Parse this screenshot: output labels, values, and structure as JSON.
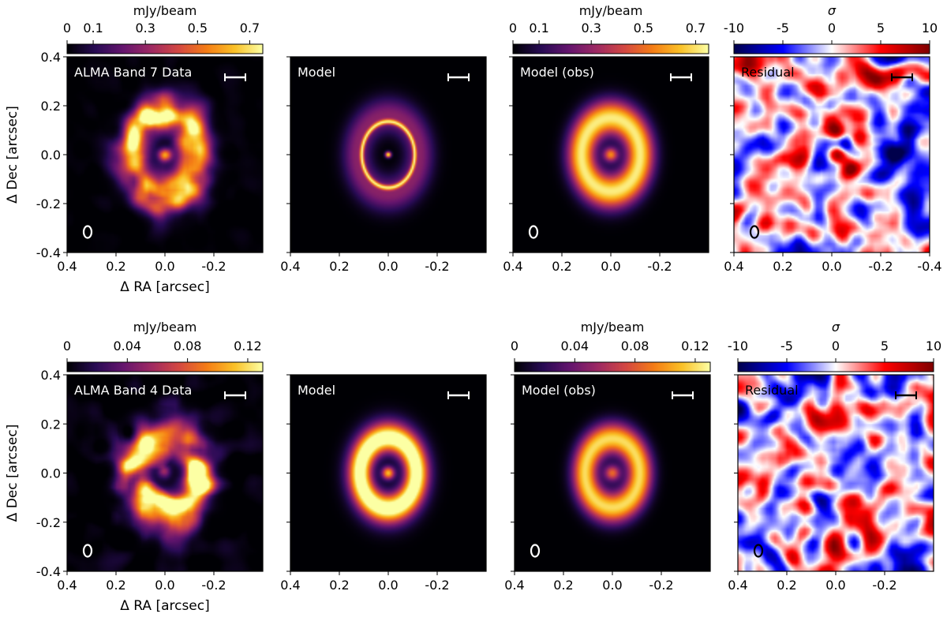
{
  "chart_data": [
    {
      "type": "heatmap",
      "row": "Band 7",
      "colormap_name": "inferno",
      "colorbar_label": "mJy/beam",
      "colorbar_ticks": [
        "0",
        "0.1",
        "0.3",
        "0.5",
        "0.7"
      ],
      "colorbar_tick_values": [
        0,
        0.1,
        0.3,
        0.5,
        0.7
      ],
      "colorbar_range": [
        0,
        0.75
      ],
      "residual_colormap_name": "seismic",
      "residual_colorbar_label": "σ",
      "residual_colorbar_ticks": [
        "-10",
        "-5",
        "0",
        "5",
        "10"
      ],
      "residual_colorbar_tick_values": [
        -10,
        -5,
        0,
        5,
        10
      ],
      "residual_range": [
        -10,
        10
      ],
      "xlabel": "Δ RA [arcsec]",
      "ylabel": "Δ Dec [arcsec]",
      "xlim": [
        0.4,
        -0.4
      ],
      "ylim": [
        -0.4,
        0.4
      ],
      "x_ticks": [
        "0.4",
        "0.2",
        "0.0",
        "-0.2"
      ],
      "x_tick_values": [
        0.4,
        0.2,
        0.0,
        -0.2
      ],
      "x_ticks_residual": [
        "0.4",
        "0.2",
        "0.0",
        "-0.2",
        "-0.4"
      ],
      "x_tick_values_residual": [
        0.4,
        0.2,
        0.0,
        -0.2,
        -0.4
      ],
      "y_ticks": [
        "0.4",
        "0.2",
        "0.0",
        "-0.2",
        "-0.4"
      ],
      "y_tick_values": [
        0.4,
        0.2,
        0.0,
        -0.2,
        -0.4
      ],
      "panels": [
        {
          "kind": "data",
          "title": "ALMA Band 7 Data",
          "beam": true,
          "ring_radius": 0.165,
          "ring_width": 0.05,
          "ring_peak": 0.7,
          "center_peak": 0.55,
          "center_width": 0.018,
          "halo": 0.06,
          "noise": 0.06
        },
        {
          "kind": "model",
          "title": "Model",
          "beam": false,
          "ring_radius": 0.135,
          "ring_width": 0.007,
          "ring_peak": 0.5,
          "outer_halo_radius": 0.16,
          "outer_halo_width": 0.05,
          "outer_halo_peak": 0.28,
          "center_peak": 0.75,
          "center_width": 0.008
        },
        {
          "kind": "model_obs",
          "title": "Model (obs)",
          "beam": true,
          "ring_radius": 0.15,
          "ring_width": 0.05,
          "ring_peak": 0.72,
          "center_peak": 0.55,
          "center_width": 0.02
        },
        {
          "kind": "residual",
          "title": "Residual",
          "beam": true,
          "noise_sigma": 3.5,
          "features": [
            {
              "x": 0.05,
              "y": -0.05,
              "amp": -9,
              "w": 0.03
            },
            {
              "x": -0.02,
              "y": 0.0,
              "amp": 8,
              "w": 0.025
            },
            {
              "x": -0.02,
              "y": 0.09,
              "amp": 8,
              "w": 0.025
            },
            {
              "x": -0.08,
              "y": -0.06,
              "amp": 9,
              "w": 0.025
            },
            {
              "x": -0.06,
              "y": 0.04,
              "amp": -7,
              "w": 0.025
            }
          ]
        }
      ]
    },
    {
      "type": "heatmap",
      "row": "Band 4",
      "colormap_name": "inferno",
      "colorbar_label": "mJy/beam",
      "colorbar_ticks": [
        "0",
        "0.04",
        "0.08",
        "0.12"
      ],
      "colorbar_tick_values": [
        0,
        0.04,
        0.08,
        0.12
      ],
      "colorbar_range": [
        0,
        0.13
      ],
      "residual_colormap_name": "seismic",
      "residual_colorbar_label": "σ",
      "residual_colorbar_ticks": [
        "-10",
        "-5",
        "0",
        "5",
        "10"
      ],
      "residual_colorbar_tick_values": [
        -10,
        -5,
        0,
        5,
        10
      ],
      "residual_range": [
        -10,
        10
      ],
      "xlabel": "Δ RA [arcsec]",
      "ylabel": "Δ Dec [arcsec]",
      "xlim": [
        0.4,
        -0.4
      ],
      "ylim": [
        -0.4,
        0.4
      ],
      "x_ticks": [
        "0.4",
        "0.2",
        "0.0",
        "-0.2"
      ],
      "x_tick_values": [
        0.4,
        0.2,
        0.0,
        -0.2
      ],
      "x_ticks_residual": [
        "0.4",
        "0.2",
        "0.0",
        "-0.2"
      ],
      "x_tick_values_residual": [
        0.4,
        0.2,
        0.0,
        -0.2
      ],
      "y_ticks": [
        "0.4",
        "0.2",
        "0.0",
        "-0.2",
        "-0.4"
      ],
      "y_tick_values": [
        0.4,
        0.2,
        0.0,
        -0.2,
        -0.4
      ],
      "panels": [
        {
          "kind": "data",
          "title": "ALMA Band 4 Data",
          "beam": true,
          "ring_radius": 0.155,
          "ring_width": 0.05,
          "ring_peak": 0.12,
          "center_peak": 0.08,
          "center_width": 0.018,
          "halo": 0.02,
          "noise": 0.025
        },
        {
          "kind": "model",
          "title": "Model",
          "beam": false,
          "ring_radius": 0.14,
          "ring_width": 0.04,
          "ring_peak": 0.125,
          "outer_halo_radius": 0.17,
          "outer_halo_width": 0.05,
          "outer_halo_peak": 0.03,
          "center_peak": 0.11,
          "center_width": 0.018
        },
        {
          "kind": "model_obs",
          "title": "Model (obs)",
          "beam": true,
          "ring_radius": 0.14,
          "ring_width": 0.045,
          "ring_peak": 0.12,
          "center_peak": 0.085,
          "center_width": 0.022
        },
        {
          "kind": "residual",
          "title": "Residual",
          "beam": true,
          "noise_sigma": 3.5,
          "features": []
        }
      ]
    }
  ]
}
